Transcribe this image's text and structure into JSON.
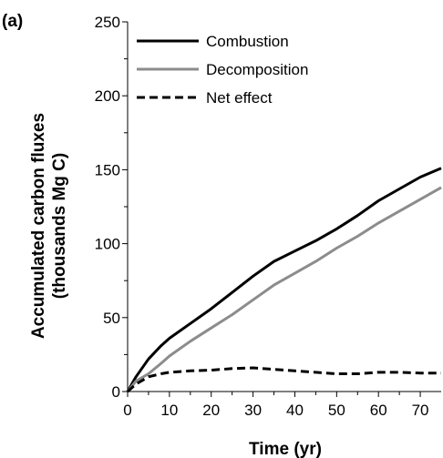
{
  "panel_label": "(a)",
  "chart_data": {
    "type": "line",
    "title": "",
    "xlabel": "Time (yr)",
    "ylabel_line1": "Accumulated carbon fluxes",
    "ylabel_line2": "(thousands Mg C)",
    "xlim": [
      0,
      75
    ],
    "ylim": [
      0,
      250
    ],
    "xticks": [
      0,
      10,
      20,
      30,
      40,
      50,
      60,
      70
    ],
    "yticks": [
      0,
      50,
      100,
      150,
      200,
      250
    ],
    "grid": false,
    "legend_position": "top-left",
    "series": [
      {
        "name": "Combustion",
        "color": "#000000",
        "style": "solid",
        "x": [
          0,
          2,
          5,
          8,
          10,
          15,
          20,
          25,
          30,
          35,
          40,
          45,
          50,
          55,
          60,
          65,
          70,
          75
        ],
        "y": [
          0,
          10,
          22,
          31,
          36,
          46,
          56,
          67,
          78,
          88,
          95,
          102,
          110,
          119,
          129,
          137,
          145,
          151
        ]
      },
      {
        "name": "Decomposition",
        "color": "#8c8c8c",
        "style": "solid",
        "x": [
          0,
          2,
          5,
          8,
          10,
          15,
          20,
          25,
          30,
          35,
          40,
          45,
          50,
          55,
          60,
          65,
          70,
          75
        ],
        "y": [
          0,
          7,
          12,
          19,
          24,
          34,
          43,
          52,
          62,
          72,
          80,
          88,
          97,
          105,
          114,
          122,
          130,
          138
        ]
      },
      {
        "name": "Net effect",
        "color": "#000000",
        "style": "dashed",
        "x": [
          0,
          2,
          5,
          8,
          10,
          15,
          20,
          25,
          30,
          35,
          40,
          45,
          50,
          55,
          60,
          65,
          70,
          75
        ],
        "y": [
          0,
          5,
          10,
          12,
          13,
          14,
          14.5,
          15.5,
          16,
          15,
          14,
          13,
          12,
          12,
          13,
          13,
          12.5,
          12.5
        ]
      }
    ]
  }
}
